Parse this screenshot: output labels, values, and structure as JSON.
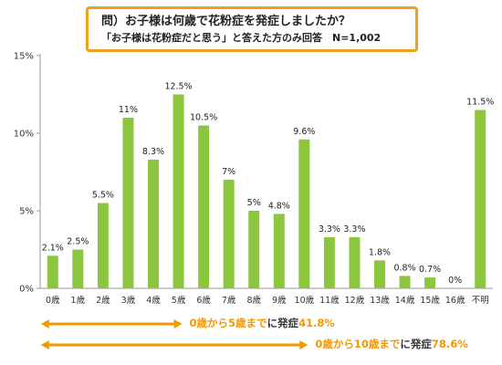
{
  "title": {
    "line1": "問）お子様は何歳で花粉症を発症しましたか？",
    "line2": "「お子様は花粉症だと思う」と答えた方のみ回答　N=1,002"
  },
  "chart_data": {
    "type": "bar",
    "categories": [
      "0歳",
      "1歳",
      "2歳",
      "3歳",
      "4歳",
      "5歳",
      "6歳",
      "7歳",
      "8歳",
      "9歳",
      "10歳",
      "11歳",
      "12歳",
      "13歳",
      "14歳",
      "15歳",
      "16歳",
      "不明"
    ],
    "values": [
      2.1,
      2.5,
      5.5,
      11,
      8.3,
      12.5,
      10.5,
      7,
      5,
      4.8,
      9.6,
      3.3,
      3.3,
      1.8,
      0.8,
      0.7,
      0,
      11.5
    ],
    "value_labels": [
      "2.1%",
      "2.5%",
      "5.5%",
      "11%",
      "8.3%",
      "12.5%",
      "10.5%",
      "7%",
      "5%",
      "4.8%",
      "9.6%",
      "3.3%",
      "3.3%",
      "1.8%",
      "0.8%",
      "0.7%",
      "0%",
      "11.5%"
    ],
    "yticks": [
      0,
      5,
      10,
      15
    ],
    "ytick_labels": [
      "0%",
      "5%",
      "10%",
      "15%"
    ],
    "ylim": [
      0,
      15
    ],
    "grid": false,
    "bar_color": "#8cc63f"
  },
  "annotations": {
    "arrow_color": "#f39800",
    "a1": {
      "part1": "0歳から5歳まで",
      "part2": "に発症",
      "part3": "41.8%"
    },
    "a2": {
      "part1": "0歳から10歳まで",
      "part2": "に発症",
      "part3": "78.6%"
    }
  }
}
